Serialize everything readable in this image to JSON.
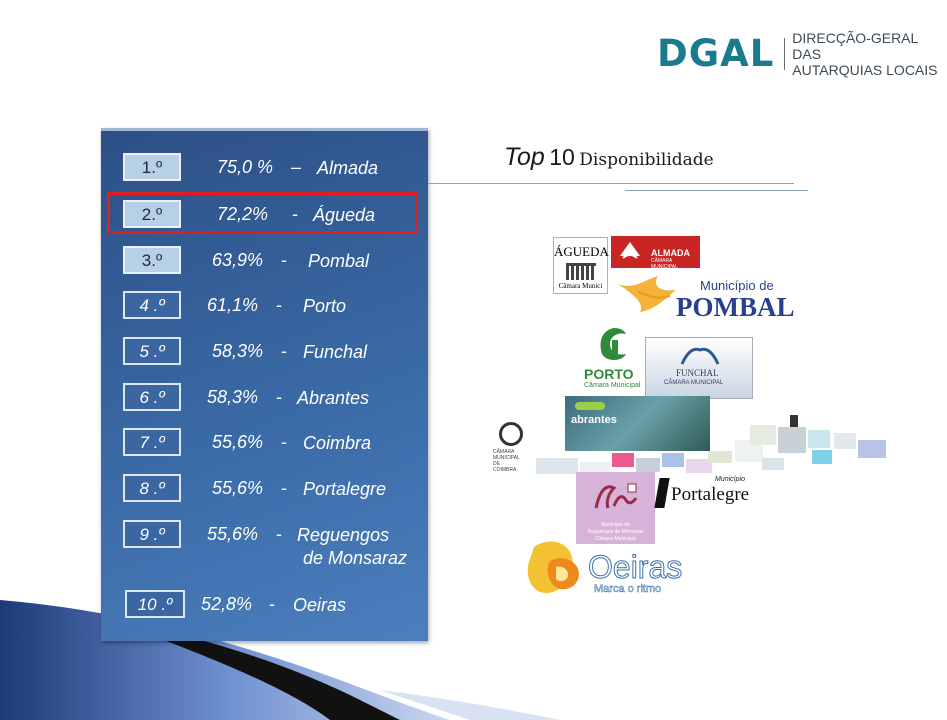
{
  "brand": {
    "mark": "DGAL",
    "line1": "DIRECÇÃO-GERAL DAS",
    "line2": "AUTARQUIAS LOCAIS"
  },
  "title": {
    "italic": "Top",
    "number": "10",
    "rest": "Disponibilidade"
  },
  "ranking": [
    {
      "rank": "1.º",
      "pct": "75,0 %",
      "sep": "–",
      "name": "Almada"
    },
    {
      "rank": "2.º",
      "pct": "72,2%",
      "sep": "-",
      "name": "Águeda"
    },
    {
      "rank": "3.º",
      "pct": "63,9%",
      "sep": "-",
      "name": "Pombal"
    },
    {
      "rank": "4 .º",
      "pct": "61,1%",
      "sep": "-",
      "name": "Porto"
    },
    {
      "rank": "5 .º",
      "pct": "58,3%",
      "sep": "-",
      "name": "Funchal"
    },
    {
      "rank": "6 .º",
      "pct": "58,3%",
      "sep": "-",
      "name": "Abrantes"
    },
    {
      "rank": "7 .º",
      "pct": "55,6%",
      "sep": "-",
      "name": "Coimbra"
    },
    {
      "rank": "8 .º",
      "pct": "55,6%",
      "sep": "-",
      "name": "Portalegre"
    },
    {
      "rank": "9 .º",
      "pct": "55,6%",
      "sep": "-",
      "name": "Reguengos",
      "name2": "de Monsaraz"
    },
    {
      "rank": "10 .º",
      "pct": "52,8%",
      "sep": "-",
      "name": "Oeiras"
    }
  ],
  "logos": {
    "agueda": {
      "title": "ÁGUEDA",
      "sub": "Câmara Munici"
    },
    "almada": {
      "title": "ALMADA",
      "sub": "CÂMARA MUNICIPAL"
    },
    "pombal": {
      "top": "Município de",
      "main": "POMBAL"
    },
    "porto": {
      "title": "PORTO",
      "sub": "Câmara Municipal"
    },
    "funchal": {
      "title": "FUNCHAL",
      "sub": "CÂMARA MUNICIPAL"
    },
    "abrantes": {
      "title": "abrantes"
    },
    "coimbra": {
      "line1": "CÂMARA",
      "line2": "MUNICIPAL",
      "line3": "DE",
      "line4": "COIMBRA"
    },
    "portalegre": {
      "top": "Município",
      "main": "Portalegre"
    },
    "reguengos": {
      "line1": "Município de",
      "line2": "Reguengos de Monsaraz",
      "line3": "Câmara Municipal"
    },
    "oeiras": {
      "title": "Oeiras",
      "sub": "Marca o ritmo"
    }
  },
  "colors": {
    "brand_teal": "#1a7a8e",
    "panel_blue": "#3a6aa6",
    "highlight_red": "#e01e22"
  }
}
